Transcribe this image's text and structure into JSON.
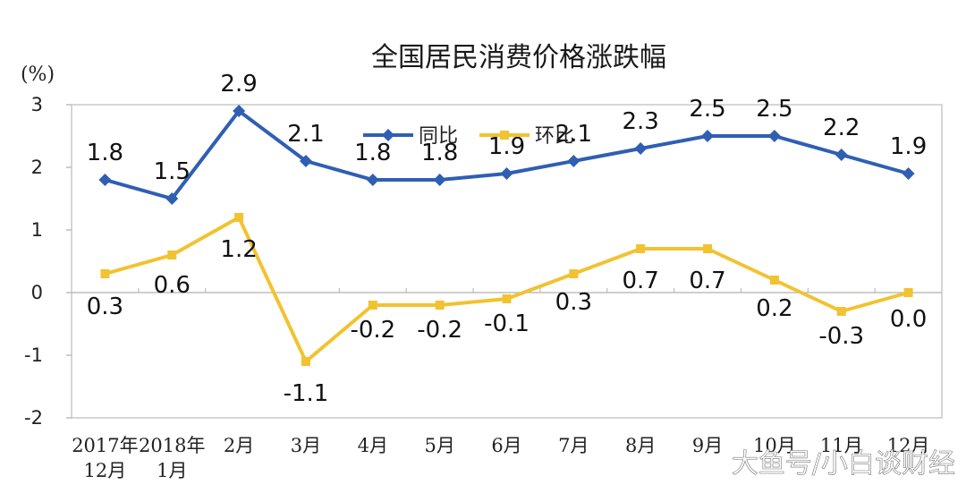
{
  "chart_data": {
    "type": "line",
    "title": "全国居民消费价格涨跌幅",
    "unit": "(%)",
    "ylim": [
      -2,
      3
    ],
    "yticks": [
      "3",
      "2",
      "1",
      "0",
      "-1",
      "-2"
    ],
    "categories": [
      "2017年12月",
      "2018年1月",
      "2月",
      "3月",
      "4月",
      "5月",
      "6月",
      "7月",
      "8月",
      "9月",
      "10月",
      "11月",
      "12月"
    ],
    "category_lines": [
      [
        "2017年",
        "12月"
      ],
      [
        "2018年",
        "1月"
      ],
      [
        "2月"
      ],
      [
        "3月"
      ],
      [
        "4月"
      ],
      [
        "5月"
      ],
      [
        "6月"
      ],
      [
        "7月"
      ],
      [
        "8月"
      ],
      [
        "9月"
      ],
      [
        "10月"
      ],
      [
        "11月"
      ],
      [
        "12月"
      ]
    ],
    "series": [
      {
        "name": "同比",
        "color": "#2f5fb3",
        "values": [
          1.8,
          1.5,
          2.9,
          2.1,
          1.8,
          1.8,
          1.9,
          2.1,
          2.3,
          2.5,
          2.5,
          2.2,
          1.9
        ],
        "labels": [
          "1.8",
          "1.5",
          "2.9",
          "2.1",
          "1.8",
          "1.8",
          "1.9",
          "2.1",
          "2.3",
          "2.5",
          "2.5",
          "2.2",
          "1.9"
        ]
      },
      {
        "name": "环比",
        "color": "#f2c230",
        "values": [
          0.3,
          0.6,
          1.2,
          -1.1,
          -0.2,
          -0.2,
          -0.1,
          0.3,
          0.7,
          0.7,
          0.2,
          -0.3,
          0.0
        ],
        "labels": [
          "0.3",
          "0.6",
          "1.2",
          "-1.1",
          "-0.2",
          "-0.2",
          "-0.1",
          "0.3",
          "0.7",
          "0.7",
          "0.2",
          "-0.3",
          "0.0"
        ]
      }
    ],
    "legend_position": "top-center",
    "grid": false
  },
  "watermark": "大鱼号/小白谈财经"
}
